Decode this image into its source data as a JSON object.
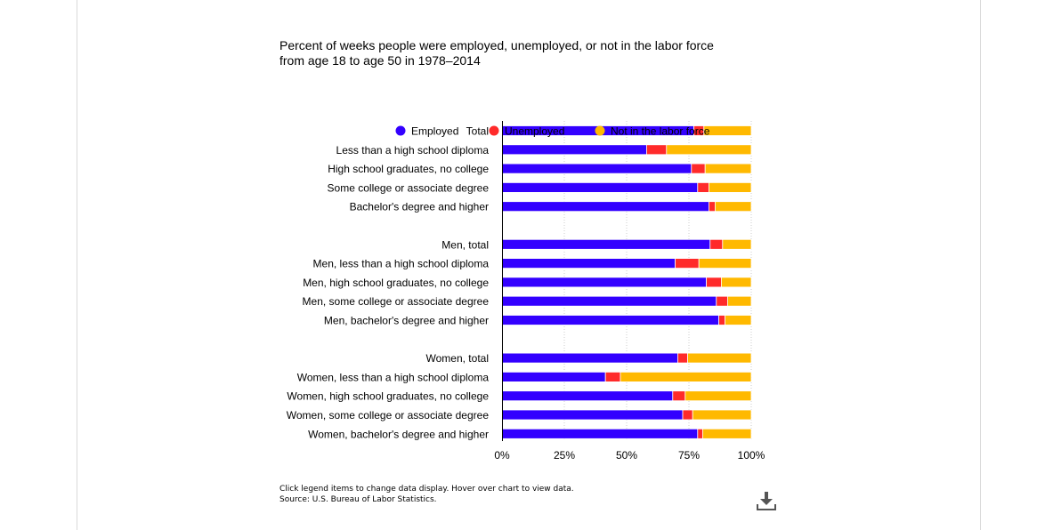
{
  "title_lines": [
    "Percent of weeks people were employed, unemployed, or not in the labor force",
    "from age 18 to age 50 in 1978–2014"
  ],
  "notes": {
    "instructions": "Click legend items to change data display. Hover over chart to view data.",
    "source": "Source: U.S. Bureau of Labor Statistics."
  },
  "icons": {
    "download": "download-icon"
  },
  "chart_data": {
    "type": "bar",
    "orientation": "horizontal",
    "stacked": true,
    "legend": {
      "placement": "top-left"
    },
    "categories": [
      "Total",
      "Less than a high school diploma",
      "High school graduates, no college",
      "Some college or associate degree",
      "Bachelor's degree and higher",
      "Men, total",
      "Men, less than a high school diploma",
      "Men, high school graduates, no college",
      "Men, some college or associate degree",
      "Men, bachelor's degree and higher",
      "Women, total",
      "Women, less than a high school diploma",
      "Women, high school graduates, no college",
      "Women, some college or associate degree",
      "Women, bachelor's degree and higher"
    ],
    "groups": [
      [
        0,
        1,
        2,
        3,
        4
      ],
      [
        5,
        6,
        7,
        8,
        9
      ],
      [
        10,
        11,
        12,
        13,
        14
      ]
    ],
    "series": [
      {
        "name": "Employed",
        "color": "#3300ff",
        "values": [
          77.0,
          58.0,
          76.0,
          78.5,
          83.0,
          83.5,
          69.5,
          82.0,
          86.0,
          87.0,
          70.5,
          41.5,
          68.5,
          72.5,
          78.5
        ]
      },
      {
        "name": "Unemployed",
        "color": "#ff2a2a",
        "values": [
          4.0,
          8.0,
          5.5,
          4.5,
          2.5,
          5.0,
          9.5,
          6.0,
          4.5,
          2.5,
          4.0,
          6.0,
          5.0,
          4.0,
          2.0
        ]
      },
      {
        "name": "Not in the labor force",
        "color": "#ffb900",
        "values": [
          19.0,
          34.0,
          18.5,
          17.0,
          14.5,
          11.5,
          21.0,
          12.0,
          9.5,
          10.5,
          25.5,
          52.5,
          26.5,
          23.5,
          19.5
        ]
      }
    ],
    "xticks": [
      "0%",
      "25%",
      "50%",
      "75%",
      "100%"
    ],
    "xlim": [
      0,
      100
    ],
    "grid": true
  }
}
